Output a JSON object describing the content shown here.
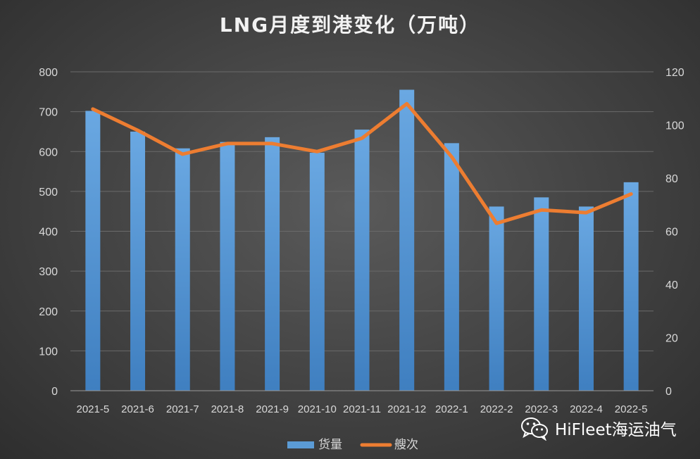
{
  "chart_data": {
    "type": "bar",
    "title": "LNG月度到港变化（万吨）",
    "categories": [
      "2021-5",
      "2021-6",
      "2021-7",
      "2021-8",
      "2021-9",
      "2021-10",
      "2021-11",
      "2021-12",
      "2022-1",
      "2022-2",
      "2022-3",
      "2022-4",
      "2022-5"
    ],
    "series": [
      {
        "name": "货量",
        "type": "bar",
        "axis": "left",
        "color": "#5b9bd5",
        "values": [
          702,
          650,
          608,
          624,
          636,
          597,
          655,
          755,
          621,
          462,
          485,
          462,
          523
        ]
      },
      {
        "name": "艘次",
        "type": "line",
        "axis": "right",
        "color": "#ed7d31",
        "values": [
          106,
          98,
          89,
          93,
          93,
          90,
          95,
          108,
          88,
          63,
          68,
          67,
          74
        ]
      }
    ],
    "y_left": {
      "min": 0,
      "max": 800,
      "ticks": [
        0,
        100,
        200,
        300,
        400,
        500,
        600,
        700,
        800
      ]
    },
    "y_right": {
      "min": 0,
      "max": 120,
      "ticks": [
        0,
        20,
        40,
        60,
        80,
        100,
        120
      ]
    },
    "grid": true,
    "legend_position": "bottom"
  },
  "watermark": {
    "text": "HiFleet海运油气",
    "icon": "wechat-icon"
  }
}
